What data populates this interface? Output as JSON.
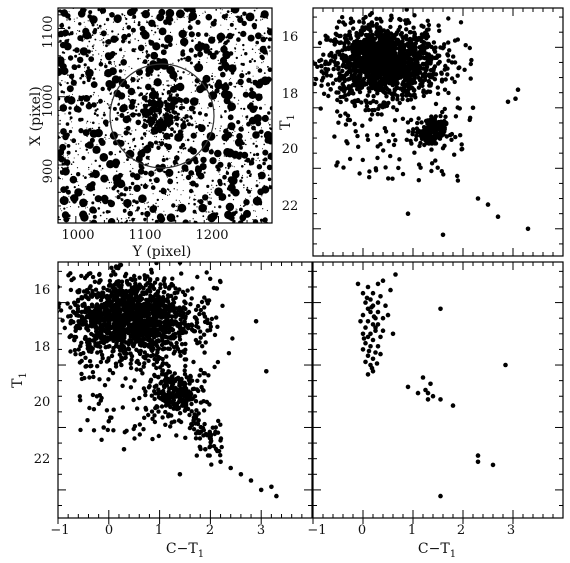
{
  "figure": {
    "panel_tl": {
      "xlabel": "Y (pixel)",
      "ylabel": "X (pixel)",
      "xticks": [
        "1000",
        "1100",
        "1200"
      ],
      "yticks": [
        "900",
        "1000",
        "1100"
      ]
    },
    "panel_tr": {
      "ylabel_main": "T",
      "ylabel_sub": "1",
      "yticks": [
        "16",
        "18",
        "20",
        "22"
      ]
    },
    "panel_bl": {
      "xlabel_main": "C−T",
      "xlabel_sub": "1",
      "ylabel_main": "T",
      "ylabel_sub": "1",
      "xticks": [
        "−1",
        "0",
        "1",
        "2",
        "3"
      ],
      "yticks": [
        "16",
        "18",
        "20",
        "22"
      ]
    },
    "panel_br": {
      "xlabel_main": "C−T",
      "xlabel_sub": "1",
      "xticks": [
        "−1",
        "0",
        "1",
        "2",
        "3"
      ]
    }
  },
  "chart_data": [
    {
      "type": "scatter",
      "panel": "top-left",
      "description_of_marks": "star field image (dense field of stars of various sizes) with a circle marking the cluster region",
      "xlabel": "Y (pixel)",
      "ylabel": "X (pixel)",
      "xlim": [
        975,
        1275
      ],
      "ylim": [
        815,
        1130
      ],
      "circle": {
        "center": [
          1120,
          990
        ],
        "radius": 90
      },
      "grid": false
    },
    {
      "type": "scatter",
      "panel": "top-right",
      "xlabel": "",
      "ylabel": "T1",
      "xlim": [
        -1,
        4
      ],
      "ylim": [
        23.3,
        15.1
      ],
      "grid": false,
      "features": [
        {
          "name": "main sequence / field clump",
          "center": [
            0.4,
            21.5
          ],
          "spread": [
            0.55,
            0.6
          ]
        },
        {
          "name": "red clump",
          "center": [
            1.35,
            19.2
          ],
          "spread": [
            0.15,
            0.25
          ]
        }
      ],
      "bright_stars": [
        [
          3.3,
          16.0
        ],
        [
          2.7,
          16.4
        ],
        [
          2.5,
          16.8
        ],
        [
          2.3,
          17.0
        ],
        [
          1.6,
          15.8
        ],
        [
          2.9,
          20.2
        ],
        [
          3.05,
          20.3
        ],
        [
          3.1,
          20.6
        ],
        [
          2.2,
          20.0
        ],
        [
          -0.1,
          21.9
        ],
        [
          -0.3,
          19.6
        ],
        [
          0.9,
          16.5
        ]
      ]
    },
    {
      "type": "scatter",
      "panel": "bottom-left",
      "xlabel": "C−T1",
      "ylabel": "T1",
      "xlim": [
        -1,
        4
      ],
      "ylim": [
        23.3,
        15.1
      ],
      "grid": false,
      "features": [
        {
          "name": "main sequence / field clump",
          "center": [
            0.45,
            21.5
          ],
          "spread": [
            0.6,
            0.65
          ]
        },
        {
          "name": "red clump",
          "center": [
            1.3,
            19.0
          ],
          "spread": [
            0.25,
            0.35
          ]
        },
        {
          "name": "red giant branch",
          "from": [
            1.0,
            20.0
          ],
          "to": [
            2.1,
            17.2
          ]
        }
      ],
      "bright_stars": [
        [
          3.3,
          15.8
        ],
        [
          3.0,
          16.0
        ],
        [
          2.8,
          16.3
        ],
        [
          2.6,
          16.5
        ],
        [
          2.4,
          16.7
        ],
        [
          2.2,
          16.9
        ],
        [
          1.9,
          17.3
        ],
        [
          2.0,
          17.4
        ],
        [
          3.2,
          16.1
        ],
        [
          3.1,
          19.8
        ],
        [
          2.9,
          21.4
        ],
        [
          0.3,
          17.3
        ],
        [
          -0.1,
          18.0
        ],
        [
          0.0,
          18.2
        ],
        [
          1.4,
          16.5
        ]
      ]
    },
    {
      "type": "scatter",
      "panel": "bottom-right",
      "xlabel": "C−T1",
      "ylabel": "",
      "xlim": [
        -1,
        4
      ],
      "ylim": [
        23.3,
        15.1
      ],
      "grid": false,
      "points": [
        [
          1.55,
          15.8
        ],
        [
          2.3,
          16.9
        ],
        [
          2.3,
          17.1
        ],
        [
          2.6,
          16.8
        ],
        [
          1.8,
          18.7
        ],
        [
          1.55,
          18.9
        ],
        [
          1.3,
          18.9
        ],
        [
          1.25,
          19.2
        ],
        [
          1.35,
          19.4
        ],
        [
          1.2,
          19.6
        ],
        [
          1.4,
          19.0
        ],
        [
          1.3,
          19.1
        ],
        [
          1.1,
          19.1
        ],
        [
          0.9,
          19.3
        ],
        [
          2.85,
          20.0
        ],
        [
          1.55,
          21.8
        ],
        [
          0.65,
          22.9
        ],
        [
          0.1,
          19.7
        ],
        [
          0.2,
          19.8
        ],
        [
          0.15,
          20.0
        ],
        [
          0.05,
          20.1
        ],
        [
          0.2,
          20.2
        ],
        [
          0.1,
          20.3
        ],
        [
          0.25,
          20.4
        ],
        [
          0.0,
          20.5
        ],
        [
          0.15,
          20.6
        ],
        [
          0.3,
          20.6
        ],
        [
          0.05,
          20.7
        ],
        [
          0.2,
          20.8
        ],
        [
          0.1,
          20.9
        ],
        [
          0.35,
          20.9
        ],
        [
          0.0,
          21.0
        ],
        [
          0.15,
          21.0
        ],
        [
          0.25,
          21.1
        ],
        [
          0.4,
          21.1
        ],
        [
          0.05,
          21.2
        ],
        [
          0.2,
          21.3
        ],
        [
          0.3,
          21.3
        ],
        [
          -0.05,
          21.4
        ],
        [
          0.1,
          21.4
        ],
        [
          0.25,
          21.5
        ],
        [
          0.4,
          21.5
        ],
        [
          0.0,
          21.6
        ],
        [
          0.15,
          21.7
        ],
        [
          0.3,
          21.7
        ],
        [
          0.1,
          21.8
        ],
        [
          0.2,
          21.9
        ],
        [
          0.45,
          21.9
        ],
        [
          0.05,
          22.0
        ],
        [
          0.3,
          22.0
        ],
        [
          0.15,
          22.1
        ],
        [
          0.35,
          22.2
        ],
        [
          0.0,
          22.3
        ],
        [
          0.2,
          22.3
        ],
        [
          0.1,
          22.5
        ],
        [
          0.3,
          22.6
        ],
        [
          0.55,
          22.4
        ],
        [
          0.25,
          21.2
        ],
        [
          0.12,
          20.45
        ],
        [
          0.18,
          19.9
        ],
        [
          0.22,
          21.55
        ],
        [
          0.08,
          22.15
        ],
        [
          -0.1,
          22.6
        ],
        [
          0.5,
          21.6
        ],
        [
          0.28,
          20.05
        ],
        [
          0.35,
          20.35
        ],
        [
          0.02,
          20.85
        ],
        [
          0.4,
          22.7
        ],
        [
          0.17,
          21.85
        ],
        [
          0.6,
          21.0
        ]
      ]
    }
  ]
}
